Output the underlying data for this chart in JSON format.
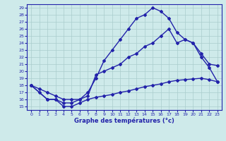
{
  "title": "Graphe des températures (°c)",
  "bg_color": "#ceeaea",
  "line_color": "#2222aa",
  "grid_color": "#aacccc",
  "xlim": [
    -0.5,
    23.5
  ],
  "ylim": [
    14.5,
    29.5
  ],
  "xticks": [
    0,
    1,
    2,
    3,
    4,
    5,
    6,
    7,
    8,
    9,
    10,
    11,
    12,
    13,
    14,
    15,
    16,
    17,
    18,
    19,
    20,
    21,
    22,
    23
  ],
  "yticks": [
    15,
    16,
    17,
    18,
    19,
    20,
    21,
    22,
    23,
    24,
    25,
    26,
    27,
    28,
    29
  ],
  "line1_x": [
    0,
    1,
    2,
    3,
    4,
    5,
    6,
    7,
    8,
    9,
    10,
    11,
    12,
    13,
    14,
    15,
    16,
    17,
    18,
    19,
    20,
    21,
    22,
    23
  ],
  "line1_y": [
    18,
    17,
    16,
    16,
    15,
    15,
    15.5,
    16,
    16.3,
    16.5,
    16.7,
    17,
    17.2,
    17.5,
    17.8,
    18,
    18.2,
    18.5,
    18.7,
    18.8,
    18.9,
    19,
    18.8,
    18.5
  ],
  "line2_x": [
    0,
    1,
    2,
    3,
    4,
    5,
    6,
    7,
    8,
    9,
    10,
    11,
    12,
    13,
    14,
    15,
    16,
    17,
    18,
    19,
    20,
    21,
    22,
    23
  ],
  "line2_y": [
    18,
    17.5,
    17,
    16.5,
    16,
    16,
    16,
    17,
    19,
    21.5,
    23,
    24.5,
    26,
    27.5,
    28,
    29,
    28.5,
    27.5,
    25.5,
    24.5,
    24,
    22,
    20.5,
    18.5
  ],
  "line3_x": [
    0,
    2,
    3,
    4,
    5,
    6,
    7,
    8,
    9,
    10,
    11,
    12,
    13,
    14,
    15,
    16,
    17,
    18,
    19,
    20,
    21,
    22,
    23
  ],
  "line3_y": [
    18,
    16,
    16,
    15.5,
    15.5,
    16,
    16.5,
    19.5,
    20,
    20.5,
    21,
    22,
    22.5,
    23.5,
    24,
    25,
    26,
    24,
    24.5,
    24,
    22.5,
    21,
    20.8
  ],
  "marker": "D",
  "markersize": 2.0,
  "linewidth": 1.0
}
